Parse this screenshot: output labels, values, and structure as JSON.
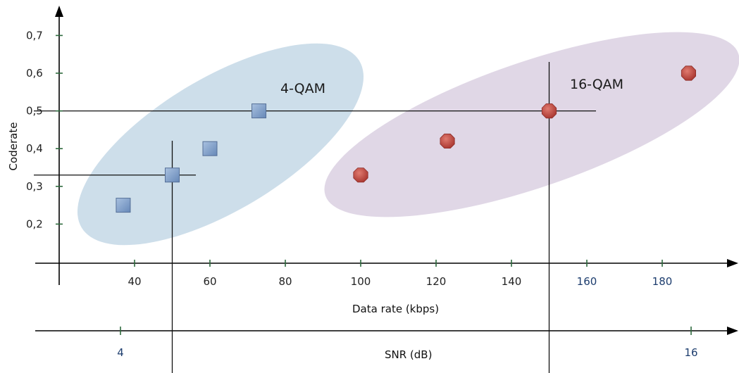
{
  "chart_data": {
    "type": "scatter",
    "title": "",
    "xlabel": "Data rate (kbps)",
    "ylabel": "Coderate",
    "secondary_x_label": "SNR (dB)",
    "x_ticks": [
      {
        "value": 40,
        "label": "40",
        "alt": false
      },
      {
        "value": 60,
        "label": "60",
        "alt": false
      },
      {
        "value": 80,
        "label": "80",
        "alt": false
      },
      {
        "value": 100,
        "label": "100",
        "alt": false
      },
      {
        "value": 120,
        "label": "120",
        "alt": false
      },
      {
        "value": 140,
        "label": "140",
        "alt": false
      },
      {
        "value": 160,
        "label": "160",
        "alt": true
      },
      {
        "value": 180,
        "label": "180",
        "alt": true
      }
    ],
    "y_ticks": [
      {
        "value": 0.2,
        "label": "0,2"
      },
      {
        "value": 0.3,
        "label": "0,3"
      },
      {
        "value": 0.4,
        "label": "0,4"
      },
      {
        "value": 0.5,
        "label": "0,5"
      },
      {
        "value": 0.6,
        "label": "0,6"
      },
      {
        "value": 0.7,
        "label": "0,7"
      }
    ],
    "snr_ticks": [
      {
        "value": 4,
        "label": "4"
      },
      {
        "value": 16,
        "label": "16"
      }
    ],
    "series": [
      {
        "name": "4-QAM",
        "marker": "square",
        "color": "#7b9bc4",
        "region_color": "#c8dae8",
        "points": [
          [
            37,
            0.25
          ],
          [
            50,
            0.33
          ],
          [
            60,
            0.4
          ],
          [
            73,
            0.5
          ]
        ]
      },
      {
        "name": "16-QAM",
        "marker": "octagon",
        "color": "#c0504d",
        "region_color": "#ddd3e3",
        "points": [
          [
            100,
            0.33
          ],
          [
            123,
            0.42
          ],
          [
            150,
            0.5
          ],
          [
            187,
            0.6
          ]
        ]
      }
    ],
    "guide_lines": {
      "vertical_x": [
        50,
        150
      ],
      "horizontal_y": [
        0.33,
        0.5
      ]
    },
    "grid": false,
    "legend": "none"
  }
}
